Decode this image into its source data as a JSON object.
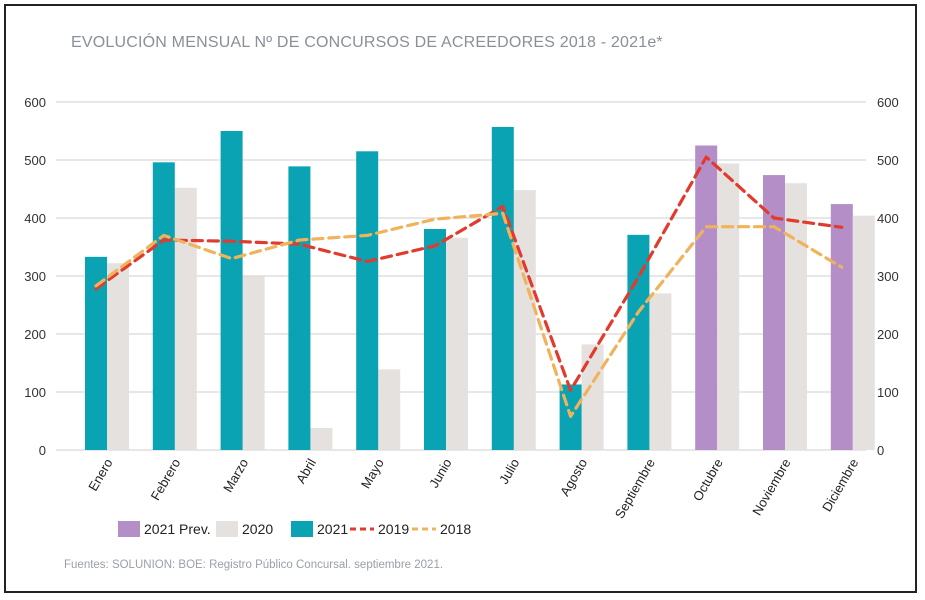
{
  "title": "EVOLUCIÓN MENSUAL Nº DE CONCURSOS DE ACREEDORES 2018 - 2021e*",
  "source": "Fuentes: SOLUNION: BOE: Registro Público Concursal. septiembre 2021.",
  "colors": {
    "prev2021": "#b48ec6",
    "y2020": "#e4e1df",
    "y2021": "#0aa3b4",
    "y2019": "#e23a2c",
    "y2018": "#f0b35b",
    "grid": "#cfcfcf"
  },
  "chart_data": {
    "type": "bar",
    "title": "EVOLUCIÓN MENSUAL Nº DE CONCURSOS DE ACREEDORES 2018 - 2021e*",
    "categories": [
      "Enero",
      "Febrero",
      "Marzo",
      "Abril",
      "Mayo",
      "Junio",
      "Julio",
      "Agosto",
      "Septiembre",
      "Octubre",
      "Noviembre",
      "Diciembre"
    ],
    "ylim": [
      0,
      600
    ],
    "yticks": [
      0,
      100,
      200,
      300,
      400,
      500,
      600
    ],
    "grid": true,
    "legend_position": "bottom",
    "series": [
      {
        "name": "2021 Prev.",
        "kind": "bar",
        "slot": 0,
        "values": [
          null,
          null,
          null,
          null,
          null,
          null,
          null,
          null,
          null,
          525,
          474,
          424
        ]
      },
      {
        "name": "2020",
        "kind": "bar",
        "slot": 1,
        "values": [
          322,
          452,
          299,
          38,
          139,
          366,
          448,
          182,
          270,
          494,
          460,
          404
        ]
      },
      {
        "name": "2021",
        "kind": "bar",
        "slot": 0,
        "values": [
          333,
          496,
          550,
          489,
          515,
          381,
          557,
          113,
          371,
          null,
          null,
          null
        ]
      },
      {
        "name": "2019",
        "kind": "line",
        "values": [
          278,
          362,
          360,
          355,
          325,
          352,
          420,
          103,
          298,
          505,
          400,
          384
        ]
      },
      {
        "name": "2018",
        "kind": "line",
        "values": [
          283,
          370,
          330,
          362,
          370,
          398,
          408,
          58,
          238,
          385,
          385,
          315
        ]
      }
    ],
    "legend": [
      "2021 Prev.",
      "2020",
      "2021",
      "2019",
      "2018"
    ]
  }
}
